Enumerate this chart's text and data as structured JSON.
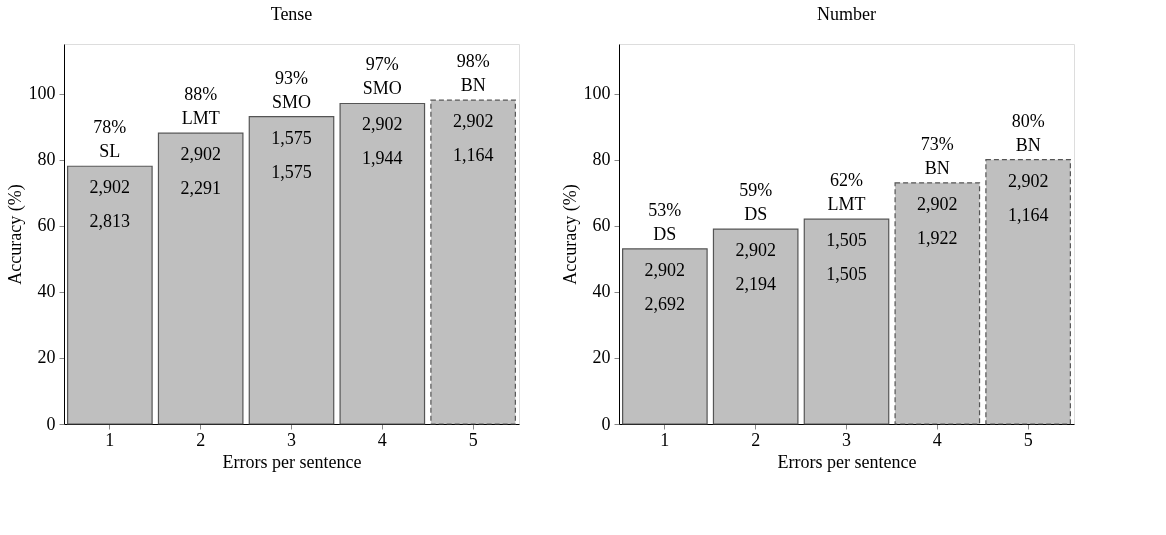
{
  "chart_data": [
    {
      "type": "bar",
      "title": "Tense",
      "xlabel": "Errors per sentence",
      "ylabel": "Accuracy (%)",
      "categories": [
        "1",
        "2",
        "3",
        "4",
        "5"
      ],
      "ylim": [
        0,
        115
      ],
      "yticks": [
        0,
        20,
        40,
        60,
        80,
        100
      ],
      "grid": false,
      "series": [
        {
          "color": "#bfbfbf",
          "line_style": "solid",
          "values": [
            78,
            88,
            93,
            97,
            null
          ],
          "value_labels": [
            "78%",
            "88%",
            "93%",
            "97%",
            null
          ]
        },
        {
          "color": "#bfbfbf",
          "line_style": "dashed",
          "values": [
            null,
            null,
            null,
            null,
            98
          ],
          "value_labels": [
            null,
            null,
            null,
            null,
            "98%"
          ]
        }
      ],
      "annotations": [
        {
          "text": "SL",
          "x": "1",
          "y": 78
        },
        {
          "text": "2,902",
          "x": "1",
          "y": 78
        },
        {
          "text": "2,813",
          "x": "1",
          "y": 78
        },
        {
          "text": "LMT",
          "x": "2",
          "y": 88
        },
        {
          "text": "2,902",
          "x": "2",
          "y": 88
        },
        {
          "text": "2,291",
          "x": "2",
          "y": 88
        },
        {
          "text": "SMO",
          "x": "3",
          "y": 93
        },
        {
          "text": "1,575",
          "x": "3",
          "y": 93
        },
        {
          "text": "1,575",
          "x": "3",
          "y": 93
        },
        {
          "text": "SMO",
          "x": "4",
          "y": 97
        },
        {
          "text": "2,902",
          "x": "4",
          "y": 97
        },
        {
          "text": "1,944",
          "x": "4",
          "y": 97
        },
        {
          "text": "BN",
          "x": "5",
          "y": 98
        },
        {
          "text": "2,902",
          "x": "5",
          "y": 98
        },
        {
          "text": "1,164",
          "x": "5",
          "y": 98
        }
      ]
    },
    {
      "type": "bar",
      "title": "Number",
      "xlabel": "Errors per sentence",
      "ylabel": "Accuracy (%)",
      "categories": [
        "1",
        "2",
        "3",
        "4",
        "5"
      ],
      "ylim": [
        0,
        115
      ],
      "yticks": [
        0,
        20,
        40,
        60,
        80,
        100
      ],
      "grid": false,
      "series": [
        {
          "color": "#bfbfbf",
          "line_style": "solid",
          "values": [
            53,
            59,
            62,
            null,
            null
          ],
          "value_labels": [
            "53%",
            "59%",
            "62%",
            null,
            null
          ]
        },
        {
          "color": "#bfbfbf",
          "line_style": "dashed",
          "values": [
            null,
            null,
            null,
            73,
            80
          ],
          "value_labels": [
            null,
            null,
            null,
            "73%",
            "80%"
          ]
        }
      ],
      "annotations": [
        {
          "text": "DS",
          "x": "1",
          "y": 53
        },
        {
          "text": "2,902",
          "x": "1",
          "y": 53
        },
        {
          "text": "2,692",
          "x": "1",
          "y": 53
        },
        {
          "text": "DS",
          "x": "2",
          "y": 59
        },
        {
          "text": "2,902",
          "x": "2",
          "y": 59
        },
        {
          "text": "2,194",
          "x": "2",
          "y": 59
        },
        {
          "text": "LMT",
          "x": "3",
          "y": 62
        },
        {
          "text": "1,505",
          "x": "3",
          "y": 62
        },
        {
          "text": "1,505",
          "x": "3",
          "y": 62
        },
        {
          "text": "BN",
          "x": "4",
          "y": 73
        },
        {
          "text": "2,902",
          "x": "4",
          "y": 73
        },
        {
          "text": "1,922",
          "x": "4",
          "y": 73
        },
        {
          "text": "BN",
          "x": "5",
          "y": 80
        },
        {
          "text": "2,902",
          "x": "5",
          "y": 80
        },
        {
          "text": "1,164",
          "x": "5",
          "y": 80
        }
      ]
    }
  ]
}
